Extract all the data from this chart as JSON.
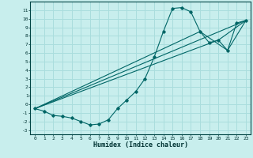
{
  "title": "",
  "xlabel": "Humidex (Indice chaleur)",
  "bg_color": "#c8eeed",
  "grid_color": "#aadddd",
  "line_color": "#006666",
  "xlim": [
    -0.5,
    23.5
  ],
  "ylim": [
    -3.5,
    12.0
  ],
  "xticks": [
    0,
    1,
    2,
    3,
    4,
    5,
    6,
    7,
    8,
    9,
    10,
    11,
    12,
    13,
    14,
    15,
    16,
    17,
    18,
    19,
    20,
    21,
    22,
    23
  ],
  "yticks": [
    -3,
    -2,
    -1,
    0,
    1,
    2,
    3,
    4,
    5,
    6,
    7,
    8,
    9,
    10,
    11
  ],
  "line1_x": [
    0,
    1,
    2,
    3,
    4,
    5,
    6,
    7,
    8,
    9,
    10,
    11,
    12,
    13,
    14,
    15,
    16,
    17,
    18,
    19,
    20,
    21,
    22,
    23
  ],
  "line1_y": [
    -0.5,
    -0.8,
    -1.3,
    -1.4,
    -1.6,
    -2.0,
    -2.4,
    -2.3,
    -1.8,
    -0.5,
    0.5,
    1.5,
    3.0,
    5.5,
    8.5,
    11.2,
    11.3,
    10.8,
    8.5,
    7.2,
    7.5,
    6.3,
    9.5,
    9.8
  ],
  "line2_x": [
    0,
    23
  ],
  "line2_y": [
    -0.5,
    9.8
  ],
  "line3_x": [
    0,
    20,
    23
  ],
  "line3_y": [
    -0.5,
    7.5,
    9.8
  ],
  "line4_x": [
    0,
    18,
    21,
    23
  ],
  "line4_y": [
    -0.5,
    8.5,
    6.3,
    9.8
  ]
}
